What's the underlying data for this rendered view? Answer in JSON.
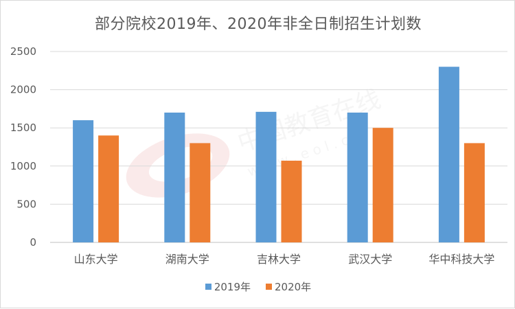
{
  "chart_data": {
    "type": "bar",
    "title": "部分院校2019年、2020年非全日制招生计划数",
    "categories": [
      "山东大学",
      "湖南大学",
      "吉林大学",
      "武汉大学",
      "华中科技大学"
    ],
    "series": [
      {
        "name": "2019年",
        "values": [
          1600,
          1700,
          1710,
          1700,
          2300
        ],
        "color": "#5b9bd5"
      },
      {
        "name": "2020年",
        "values": [
          1400,
          1300,
          1070,
          1500,
          1300
        ],
        "color": "#ed7d31"
      }
    ],
    "yticks": [
      "0",
      "500",
      "1000",
      "1500",
      "2000",
      "2500"
    ],
    "ylim": [
      0,
      2500
    ],
    "grid": true,
    "legend_position": "bottom",
    "watermark": "中国教育在线 www.eol.cn"
  }
}
